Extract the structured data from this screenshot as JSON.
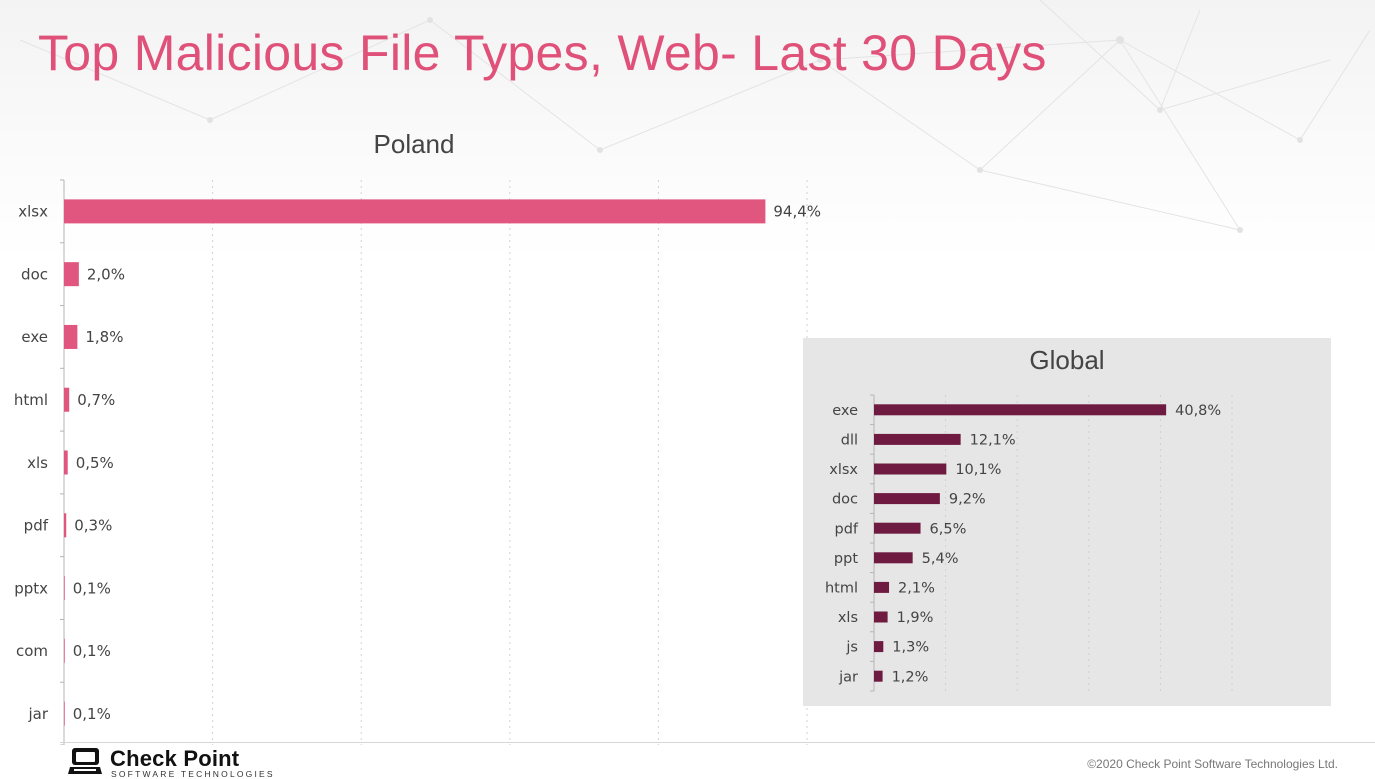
{
  "slide_title": "Top Malicious File Types, Web- Last 30 Days",
  "colors": {
    "title": "#e0517a",
    "poland_bar": "#e0567f",
    "global_bar": "#6f1a40",
    "global_panel_bg": "#e6e6e6"
  },
  "chart_data": [
    {
      "type": "bar",
      "orientation": "horizontal",
      "title": "Poland",
      "categories": [
        "xlsx",
        "doc",
        "exe",
        "html",
        "xls",
        "pdf",
        "pptx",
        "com",
        "jar"
      ],
      "values": [
        94.4,
        2.0,
        1.8,
        0.7,
        0.5,
        0.3,
        0.1,
        0.1,
        0.1
      ],
      "value_labels": [
        "94,4%",
        "2,0%",
        "1,8%",
        "0,7%",
        "0,5%",
        "0,3%",
        "0,1%",
        "0,1%",
        "0,1%"
      ],
      "xlim": [
        0,
        100
      ],
      "grid": true
    },
    {
      "type": "bar",
      "orientation": "horizontal",
      "title": "Global",
      "categories": [
        "exe",
        "dll",
        "xlsx",
        "doc",
        "pdf",
        "ppt",
        "html",
        "xls",
        "js",
        "jar"
      ],
      "values": [
        40.8,
        12.1,
        10.1,
        9.2,
        6.5,
        5.4,
        2.1,
        1.9,
        1.3,
        1.2
      ],
      "value_labels": [
        "40,8%",
        "12,1%",
        "10,1%",
        "9,2%",
        "6,5%",
        "5,4%",
        "2,1%",
        "1,9%",
        "1,3%",
        "1,2%"
      ],
      "xlim": [
        0,
        50
      ],
      "grid": true
    }
  ],
  "footer": {
    "brand_name": "Check Point",
    "brand_tagline": "SOFTWARE TECHNOLOGIES",
    "copyright": "©2020 Check Point Software Technologies Ltd."
  }
}
